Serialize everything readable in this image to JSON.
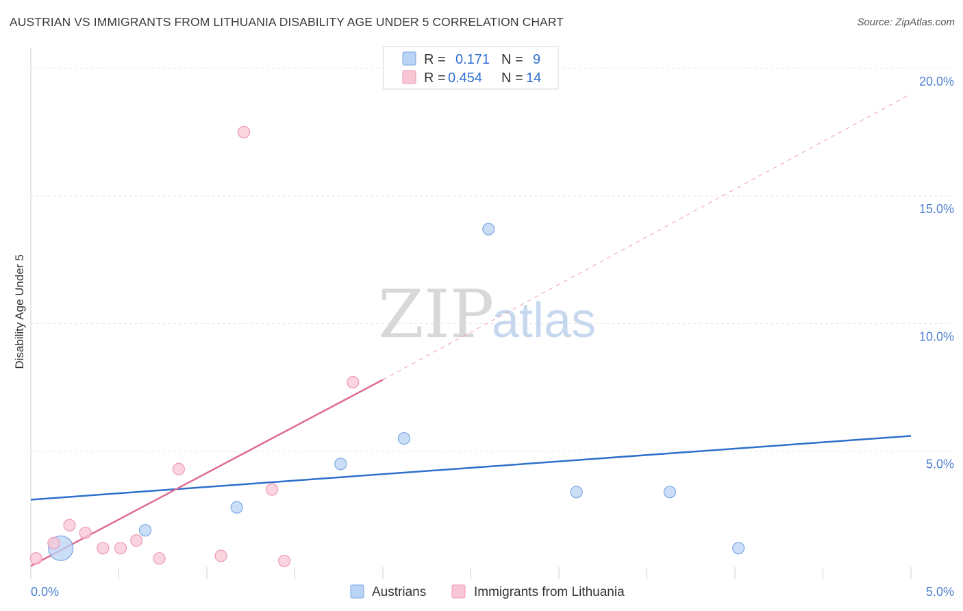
{
  "title": "AUSTRIAN VS IMMIGRANTS FROM LITHUANIA DISABILITY AGE UNDER 5 CORRELATION CHART",
  "source": "Source: ZipAtlas.com",
  "watermark": {
    "zip": "ZIP",
    "atlas": "atlas"
  },
  "colors": {
    "austrians_fill": "#b9d3f5",
    "austrians_stroke": "#7aa6e0",
    "austrians_line": "#2d6fcc",
    "lithuania_fill": "#f8c6d4",
    "lithuania_stroke": "#ee9ab4",
    "lithuania_line": "#e06a94",
    "grid": "#e3e3e3",
    "tick_text": "#4a7fd0"
  },
  "chart_data": {
    "type": "scatter",
    "ylabel": "Disability Age Under 5",
    "xlim": [
      0,
      5
    ],
    "ylim": [
      0,
      20.8
    ],
    "x_tick_labels": [
      {
        "value": 0,
        "label": "0.0%"
      },
      {
        "value": 5,
        "label": "5.0%"
      }
    ],
    "y_tick_labels": [
      {
        "value": 5,
        "label": "5.0%"
      },
      {
        "value": 10,
        "label": "10.0%"
      },
      {
        "value": 15,
        "label": "15.0%"
      },
      {
        "value": 20,
        "label": "20.0%"
      }
    ],
    "legend": {
      "rows": [
        {
          "r_label": "R = ",
          "r_value": "0.171",
          "n_label": "N = ",
          "n_value": "9",
          "series": "austrians"
        },
        {
          "r_label": "R = ",
          "r_value": "0.454",
          "n_label": "N = ",
          "n_value": "14",
          "series": "lithuania"
        }
      ]
    },
    "series": [
      {
        "name": "Austrians",
        "key": "austrians",
        "points": [
          {
            "x": 0.17,
            "y": 1.2,
            "size": "large"
          },
          {
            "x": 0.65,
            "y": 1.9
          },
          {
            "x": 1.17,
            "y": 2.8
          },
          {
            "x": 1.76,
            "y": 4.5
          },
          {
            "x": 2.12,
            "y": 5.5
          },
          {
            "x": 2.6,
            "y": 13.7
          },
          {
            "x": 3.1,
            "y": 3.4
          },
          {
            "x": 3.63,
            "y": 3.4
          },
          {
            "x": 4.02,
            "y": 1.2
          }
        ],
        "trend": {
          "x0": 0,
          "y0": 3.1,
          "x1": 5,
          "y1": 5.6
        }
      },
      {
        "name": "Immigrants from Lithuania",
        "key": "lithuania",
        "points": [
          {
            "x": 0.03,
            "y": 0.8
          },
          {
            "x": 0.13,
            "y": 1.4
          },
          {
            "x": 0.22,
            "y": 2.1
          },
          {
            "x": 0.31,
            "y": 1.8
          },
          {
            "x": 0.41,
            "y": 1.2
          },
          {
            "x": 0.51,
            "y": 1.2
          },
          {
            "x": 0.6,
            "y": 1.5
          },
          {
            "x": 0.73,
            "y": 0.8
          },
          {
            "x": 0.84,
            "y": 4.3
          },
          {
            "x": 1.08,
            "y": 0.9
          },
          {
            "x": 1.21,
            "y": 17.5
          },
          {
            "x": 1.37,
            "y": 3.5
          },
          {
            "x": 1.44,
            "y": 0.7
          },
          {
            "x": 1.83,
            "y": 7.7
          }
        ],
        "trend": {
          "x0": 0,
          "y0": 0.5,
          "x1": 2.0,
          "y1": 7.8
        },
        "trend_extension": {
          "x0": 2.0,
          "y0": 7.8,
          "x1": 5,
          "y1": 19.0
        }
      }
    ]
  }
}
